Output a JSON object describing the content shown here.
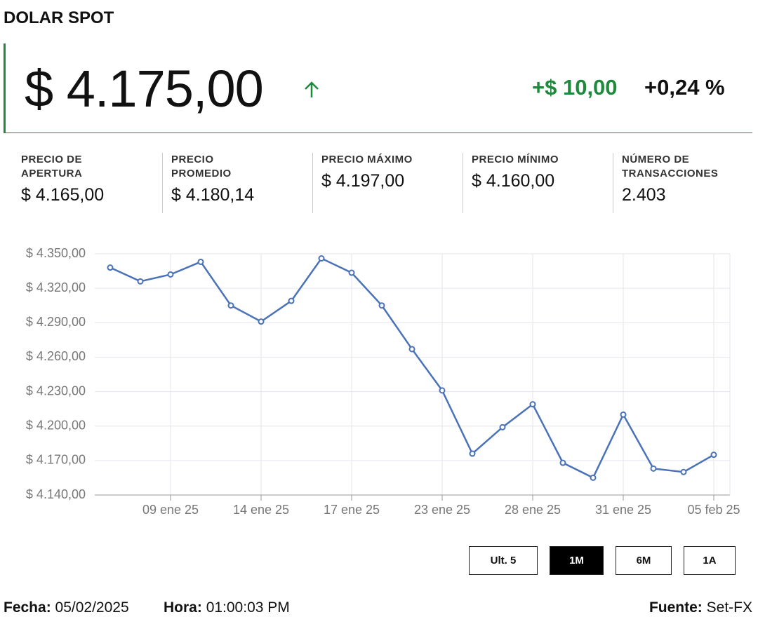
{
  "header": {
    "title": "DOLAR SPOT",
    "price": "$ 4.175,00",
    "change": "+$ 10,00",
    "change_pct": "+0,24 %"
  },
  "stats": [
    {
      "label": "PRECIO DE\nAPERTURA",
      "value": "$ 4.165,00"
    },
    {
      "label": "PRECIO\nPROMEDIO",
      "value": "$ 4.180,14"
    },
    {
      "label": "PRECIO MÁXIMO",
      "value": "$ 4.197,00"
    },
    {
      "label": "PRECIO MÍNIMO",
      "value": "$ 4.160,00"
    },
    {
      "label": "NÚMERO DE\nTRANSACCIONES",
      "value": "2.403"
    }
  ],
  "chart_data": {
    "type": "line",
    "categories": [
      null,
      null,
      "09 ene 25",
      null,
      null,
      "14 ene 25",
      null,
      null,
      "17 ene 25",
      null,
      null,
      "23 ene 25",
      null,
      null,
      "28 ene 25",
      null,
      null,
      "31 ene 25",
      null,
      null,
      "05 feb 25"
    ],
    "values": [
      4338,
      4326,
      4332,
      4343,
      4305,
      4291,
      4309,
      4346,
      4333.5,
      4305,
      4267,
      4231,
      4176,
      4199,
      4219,
      4168,
      4155,
      4210,
      4163,
      4160,
      4175
    ],
    "color": "#4a72b8",
    "ylim": [
      4140,
      4350
    ],
    "yticks": [
      {
        "value": 4140,
        "label": "$ 4.140,00"
      },
      {
        "value": 4170,
        "label": "$ 4.170,00"
      },
      {
        "value": 4200,
        "label": "$ 4.200,00"
      },
      {
        "value": 4230,
        "label": "$ 4.230,00"
      },
      {
        "value": 4260,
        "label": "$ 4.260,00"
      },
      {
        "value": 4290,
        "label": "$ 4.290,00"
      },
      {
        "value": 4320,
        "label": "$ 4.320,00"
      },
      {
        "value": 4350,
        "label": "$ 4.350,00"
      }
    ],
    "grid": true
  },
  "buttons": [
    "Ult. 5",
    "1M",
    "6M",
    "1A"
  ],
  "active_button": 1,
  "footer": {
    "date_label": "Fecha:",
    "date": "05/02/2025",
    "time_label": "Hora:",
    "time": "01:00:03 PM",
    "source_label": "Fuente:",
    "source": "Set-FX"
  }
}
